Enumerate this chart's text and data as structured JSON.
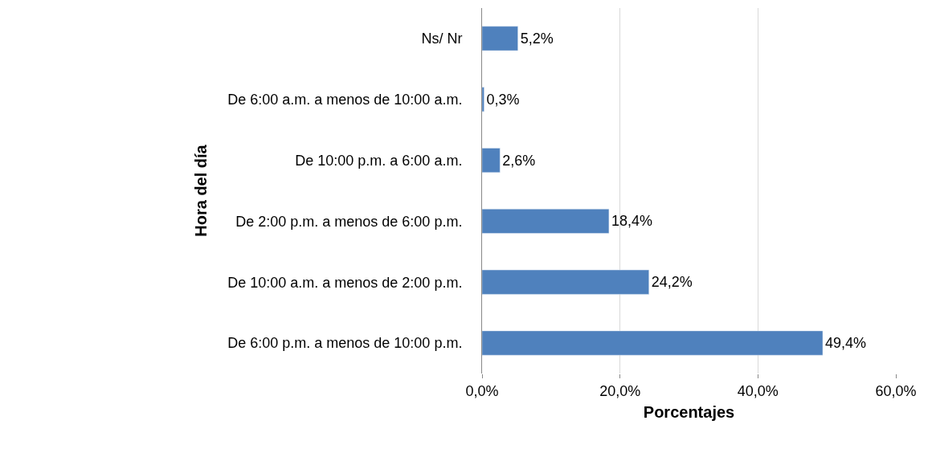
{
  "chart_data": {
    "type": "bar",
    "orientation": "horizontal",
    "xlabel": "Porcentajes",
    "ylabel": "Hora del día",
    "categories": [
      "Ns/ Nr",
      "De 6:00 a.m. a menos de 10:00 a.m.",
      "De 10:00 p.m. a 6:00 a.m.",
      "De 2:00 p.m. a menos de 6:00 p.m.",
      "De 10:00 a.m. a menos de 2:00 p.m.",
      "De 6:00 p.m. a menos de 10:00 p.m."
    ],
    "values": [
      5.2,
      0.3,
      2.6,
      18.4,
      24.2,
      49.4
    ],
    "value_labels": [
      "5,2%",
      "0,3%",
      "2,6%",
      "18,4%",
      "24,2%",
      "49,4%"
    ],
    "color": "#4f81bd",
    "xlim": [
      0,
      60
    ],
    "xticks": [
      {
        "value": 0,
        "label": "0,0%"
      },
      {
        "value": 20,
        "label": "20,0%"
      },
      {
        "value": 40,
        "label": "40,0%"
      },
      {
        "value": 60,
        "label": "60,0%"
      }
    ],
    "grid": "x",
    "legend": false
  }
}
